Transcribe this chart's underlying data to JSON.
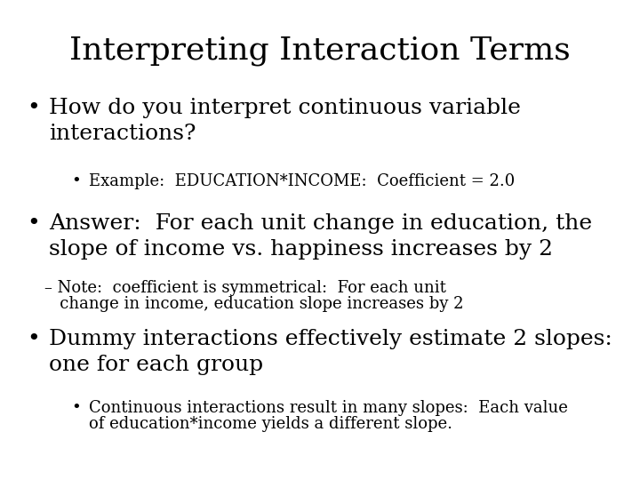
{
  "title": "Interpreting Interaction Terms",
  "background_color": "#ffffff",
  "text_color": "#000000",
  "title_fontsize": 26,
  "body_font": "DejaVu Serif",
  "bullet1_text": "How do you interpret continuous variable\ninteractions?",
  "bullet1_fontsize": 18,
  "sub_bullet1_text": "Example:  EDUCATION*INCOME:  Coefficient = 2.0",
  "sub_bullet1_fontsize": 13,
  "bullet2_text": "Answer:  For each unit change in education, the\nslope of income vs. happiness increases by 2",
  "bullet2_fontsize": 18,
  "dash_note_line1": "– Note:  coefficient is symmetrical:  For each unit",
  "dash_note_line2": "   change in income, education slope increases by 2",
  "dash_note_fontsize": 13,
  "bullet3_text": "Dummy interactions effectively estimate 2 slopes:\none for each group",
  "bullet3_fontsize": 18,
  "sub_bullet3_line1": "Continuous interactions result in many slopes:  Each value",
  "sub_bullet3_line2": "of education*income yields a different slope.",
  "sub_bullet3_fontsize": 13,
  "fig_width": 7.2,
  "fig_height": 5.4,
  "dpi": 100
}
